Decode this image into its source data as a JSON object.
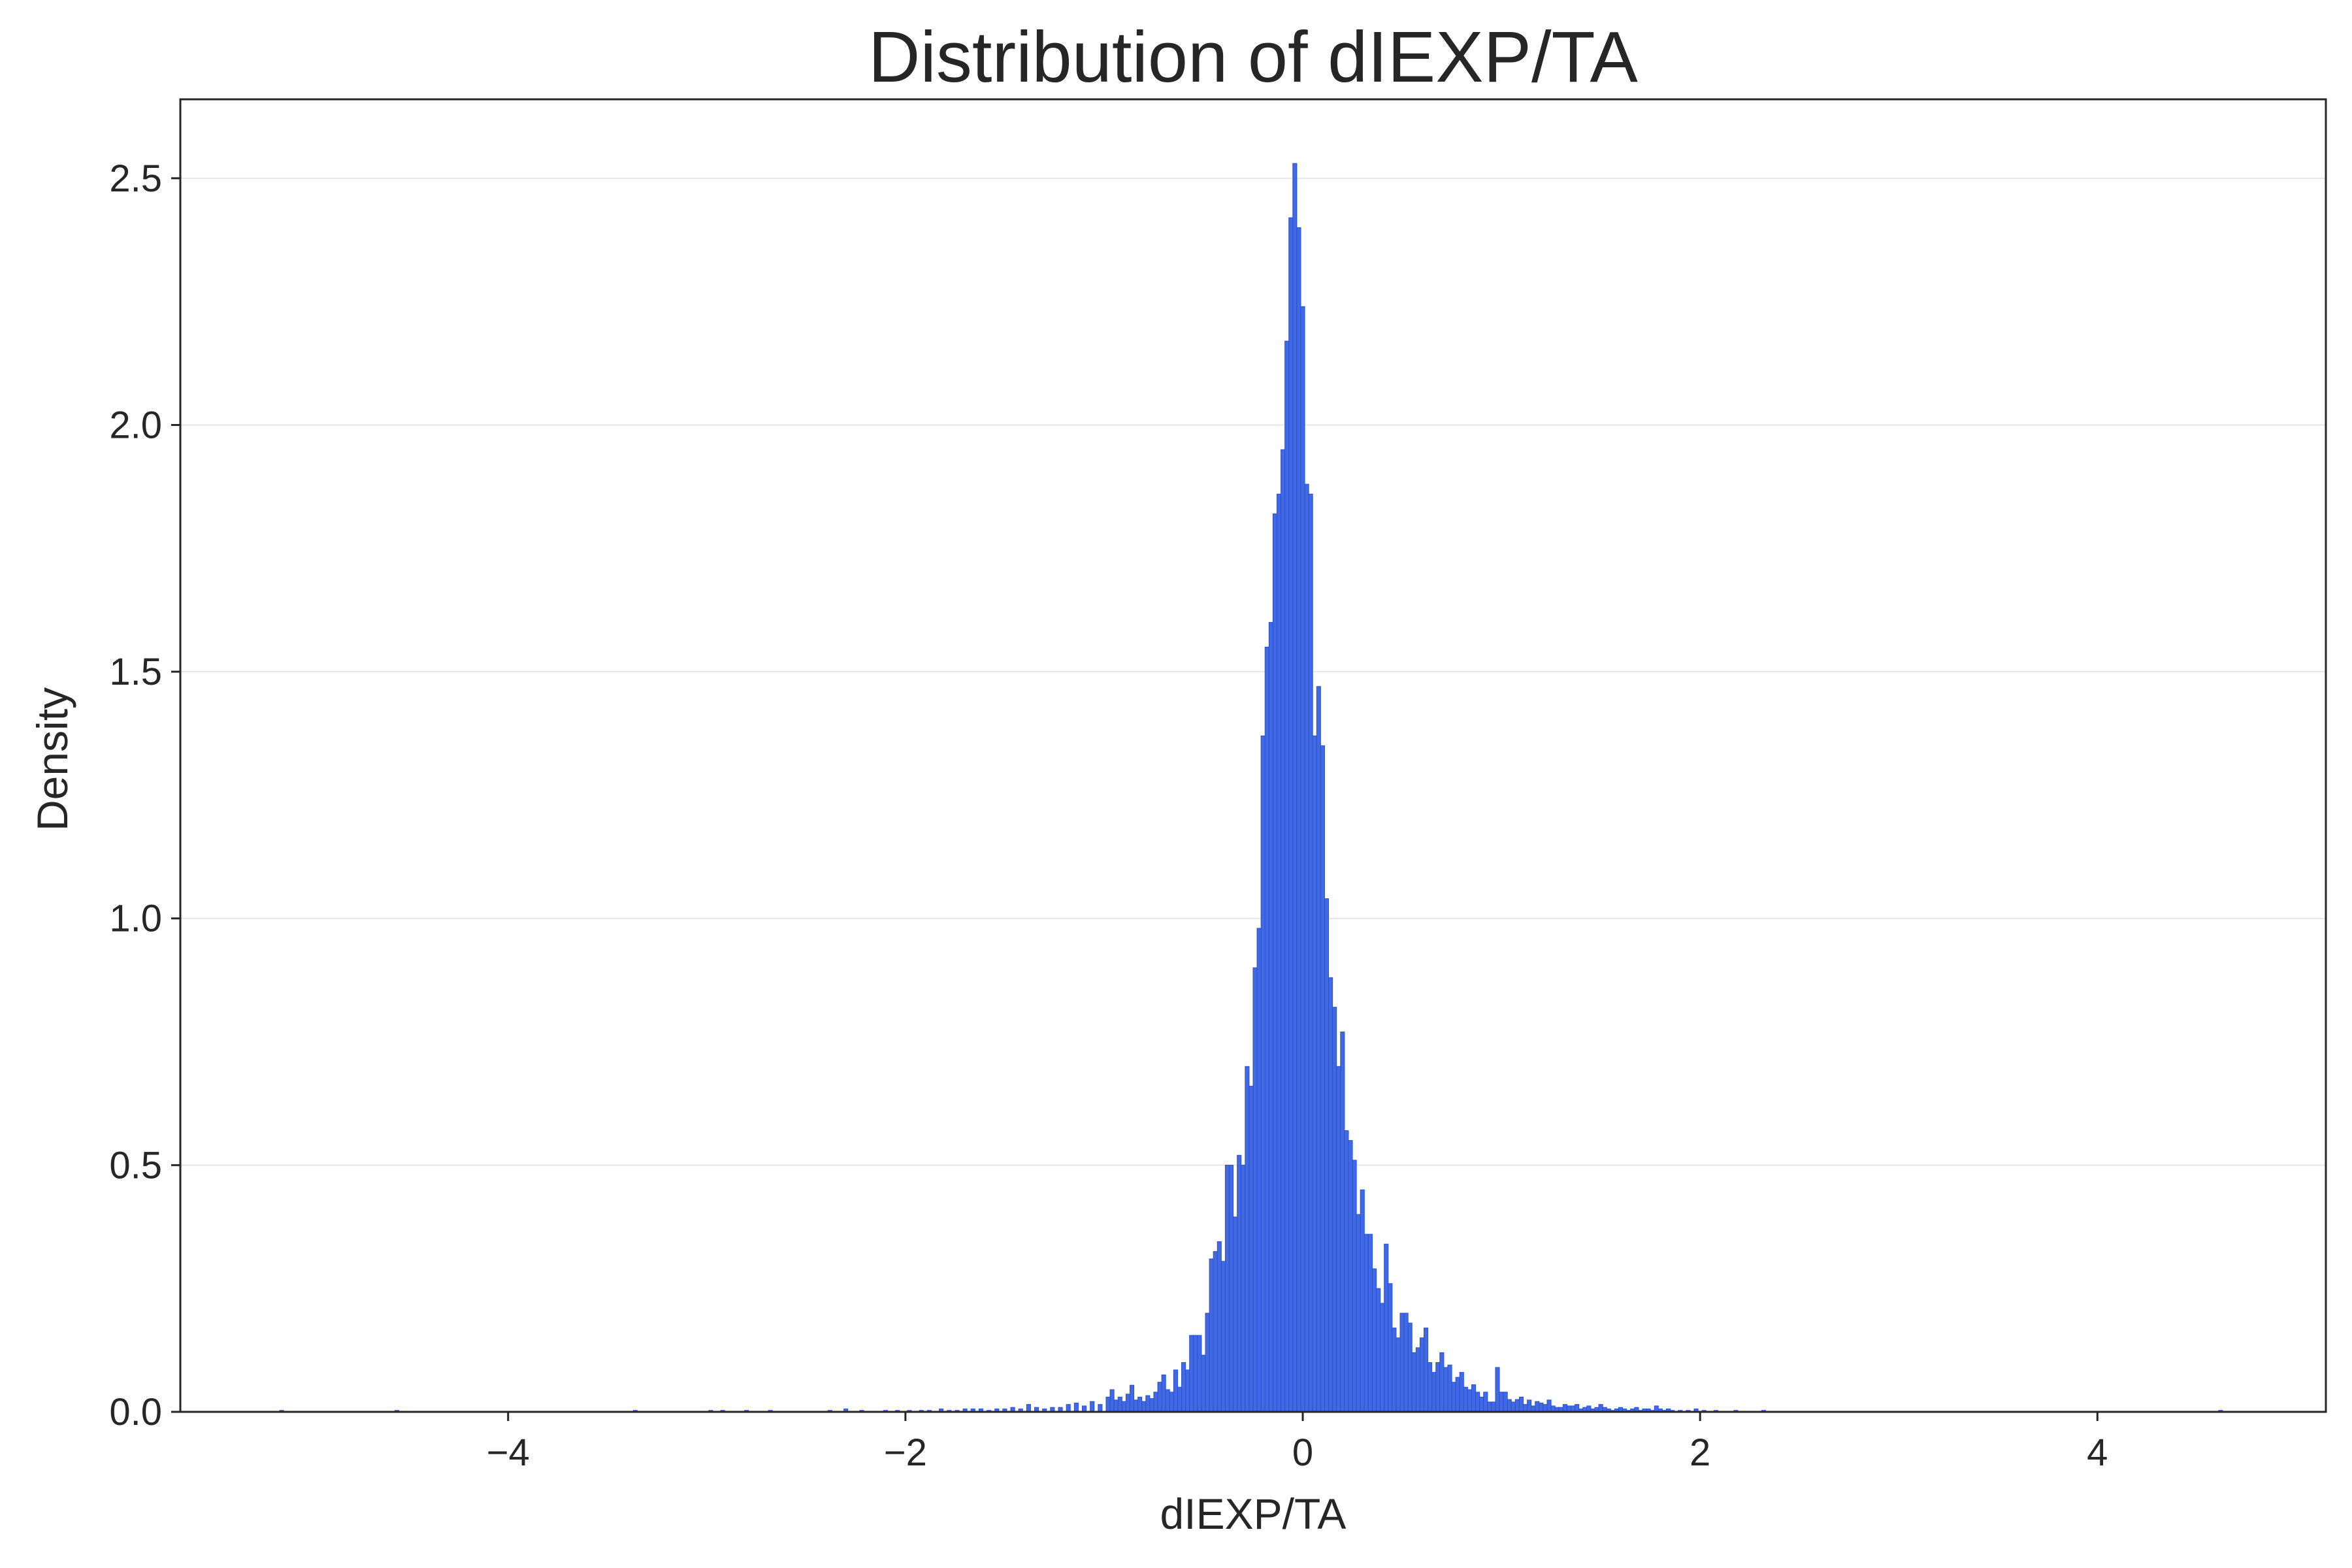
{
  "chart_data": {
    "type": "bar",
    "subtype": "histogram",
    "title": "Distribution of dIEXP/TA",
    "xlabel": "dIEXP/TA",
    "ylabel": "Density",
    "xlim": [
      -5.65,
      5.15
    ],
    "ylim": [
      0,
      2.66
    ],
    "xticks": [
      -4,
      -2,
      0,
      2,
      4
    ],
    "xtick_labels": [
      "−4",
      "−2",
      "0",
      "2",
      "4"
    ],
    "yticks": [
      0.0,
      0.5,
      1.0,
      1.5,
      2.0,
      2.5
    ],
    "ytick_labels": [
      "0.0",
      "0.5",
      "1.0",
      "1.5",
      "2.0",
      "2.5"
    ],
    "grid": "y",
    "bin_width": 0.02,
    "bar_color": "#4169e1",
    "bar_edge_color": "#2a4fd6",
    "bins": [
      {
        "x": -5.14,
        "y": 0.003
      },
      {
        "x": -4.56,
        "y": 0.003
      },
      {
        "x": -3.36,
        "y": 0.003
      },
      {
        "x": -2.98,
        "y": 0.003
      },
      {
        "x": -2.92,
        "y": 0.003
      },
      {
        "x": -2.8,
        "y": 0.003
      },
      {
        "x": -2.68,
        "y": 0.003
      },
      {
        "x": -2.38,
        "y": 0.003
      },
      {
        "x": -2.3,
        "y": 0.006
      },
      {
        "x": -2.22,
        "y": 0.003
      },
      {
        "x": -2.1,
        "y": 0.003
      },
      {
        "x": -2.04,
        "y": 0.003
      },
      {
        "x": -1.98,
        "y": 0.003
      },
      {
        "x": -1.92,
        "y": 0.003
      },
      {
        "x": -1.88,
        "y": 0.003
      },
      {
        "x": -1.82,
        "y": 0.006
      },
      {
        "x": -1.78,
        "y": 0.003
      },
      {
        "x": -1.74,
        "y": 0.003
      },
      {
        "x": -1.7,
        "y": 0.006
      },
      {
        "x": -1.66,
        "y": 0.006
      },
      {
        "x": -1.62,
        "y": 0.006
      },
      {
        "x": -1.58,
        "y": 0.003
      },
      {
        "x": -1.54,
        "y": 0.006
      },
      {
        "x": -1.5,
        "y": 0.006
      },
      {
        "x": -1.46,
        "y": 0.009
      },
      {
        "x": -1.42,
        "y": 0.006
      },
      {
        "x": -1.38,
        "y": 0.015
      },
      {
        "x": -1.34,
        "y": 0.009
      },
      {
        "x": -1.3,
        "y": 0.006
      },
      {
        "x": -1.26,
        "y": 0.009
      },
      {
        "x": -1.22,
        "y": 0.009
      },
      {
        "x": -1.18,
        "y": 0.015
      },
      {
        "x": -1.14,
        "y": 0.018
      },
      {
        "x": -1.1,
        "y": 0.012
      },
      {
        "x": -1.06,
        "y": 0.021
      },
      {
        "x": -1.02,
        "y": 0.015
      },
      {
        "x": -0.98,
        "y": 0.03
      },
      {
        "x": -0.96,
        "y": 0.045
      },
      {
        "x": -0.94,
        "y": 0.024
      },
      {
        "x": -0.92,
        "y": 0.03
      },
      {
        "x": -0.9,
        "y": 0.021
      },
      {
        "x": -0.88,
        "y": 0.036
      },
      {
        "x": -0.86,
        "y": 0.054
      },
      {
        "x": -0.84,
        "y": 0.024
      },
      {
        "x": -0.82,
        "y": 0.03
      },
      {
        "x": -0.8,
        "y": 0.021
      },
      {
        "x": -0.78,
        "y": 0.033
      },
      {
        "x": -0.76,
        "y": 0.027
      },
      {
        "x": -0.74,
        "y": 0.04
      },
      {
        "x": -0.72,
        "y": 0.06
      },
      {
        "x": -0.7,
        "y": 0.075
      },
      {
        "x": -0.68,
        "y": 0.045
      },
      {
        "x": -0.66,
        "y": 0.04
      },
      {
        "x": -0.64,
        "y": 0.085
      },
      {
        "x": -0.62,
        "y": 0.05
      },
      {
        "x": -0.6,
        "y": 0.1
      },
      {
        "x": -0.58,
        "y": 0.085
      },
      {
        "x": -0.56,
        "y": 0.155
      },
      {
        "x": -0.54,
        "y": 0.155
      },
      {
        "x": -0.52,
        "y": 0.155
      },
      {
        "x": -0.5,
        "y": 0.115
      },
      {
        "x": -0.48,
        "y": 0.2
      },
      {
        "x": -0.46,
        "y": 0.31
      },
      {
        "x": -0.44,
        "y": 0.325
      },
      {
        "x": -0.42,
        "y": 0.345
      },
      {
        "x": -0.4,
        "y": 0.305
      },
      {
        "x": -0.38,
        "y": 0.5
      },
      {
        "x": -0.36,
        "y": 0.5
      },
      {
        "x": -0.34,
        "y": 0.395
      },
      {
        "x": -0.32,
        "y": 0.52
      },
      {
        "x": -0.3,
        "y": 0.5
      },
      {
        "x": -0.28,
        "y": 0.7
      },
      {
        "x": -0.26,
        "y": 0.66
      },
      {
        "x": -0.24,
        "y": 0.9
      },
      {
        "x": -0.22,
        "y": 0.98
      },
      {
        "x": -0.2,
        "y": 1.37
      },
      {
        "x": -0.18,
        "y": 1.55
      },
      {
        "x": -0.16,
        "y": 1.6
      },
      {
        "x": -0.14,
        "y": 1.82
      },
      {
        "x": -0.12,
        "y": 1.86
      },
      {
        "x": -0.1,
        "y": 1.95
      },
      {
        "x": -0.08,
        "y": 2.17
      },
      {
        "x": -0.06,
        "y": 2.42
      },
      {
        "x": -0.04,
        "y": 2.53
      },
      {
        "x": -0.02,
        "y": 2.4
      },
      {
        "x": 0.0,
        "y": 2.24
      },
      {
        "x": 0.02,
        "y": 1.88
      },
      {
        "x": 0.04,
        "y": 1.86
      },
      {
        "x": 0.06,
        "y": 1.37
      },
      {
        "x": 0.08,
        "y": 1.47
      },
      {
        "x": 0.1,
        "y": 1.35
      },
      {
        "x": 0.12,
        "y": 1.04
      },
      {
        "x": 0.14,
        "y": 0.88
      },
      {
        "x": 0.16,
        "y": 0.82
      },
      {
        "x": 0.18,
        "y": 0.7
      },
      {
        "x": 0.2,
        "y": 0.77
      },
      {
        "x": 0.22,
        "y": 0.57
      },
      {
        "x": 0.24,
        "y": 0.55
      },
      {
        "x": 0.26,
        "y": 0.51
      },
      {
        "x": 0.28,
        "y": 0.4
      },
      {
        "x": 0.3,
        "y": 0.45
      },
      {
        "x": 0.32,
        "y": 0.36
      },
      {
        "x": 0.34,
        "y": 0.36
      },
      {
        "x": 0.36,
        "y": 0.29
      },
      {
        "x": 0.38,
        "y": 0.25
      },
      {
        "x": 0.4,
        "y": 0.22
      },
      {
        "x": 0.42,
        "y": 0.34
      },
      {
        "x": 0.44,
        "y": 0.26
      },
      {
        "x": 0.46,
        "y": 0.17
      },
      {
        "x": 0.48,
        "y": 0.15
      },
      {
        "x": 0.5,
        "y": 0.2
      },
      {
        "x": 0.52,
        "y": 0.2
      },
      {
        "x": 0.54,
        "y": 0.18
      },
      {
        "x": 0.56,
        "y": 0.12
      },
      {
        "x": 0.58,
        "y": 0.13
      },
      {
        "x": 0.6,
        "y": 0.15
      },
      {
        "x": 0.62,
        "y": 0.17
      },
      {
        "x": 0.64,
        "y": 0.1
      },
      {
        "x": 0.66,
        "y": 0.08
      },
      {
        "x": 0.68,
        "y": 0.1
      },
      {
        "x": 0.7,
        "y": 0.12
      },
      {
        "x": 0.72,
        "y": 0.09
      },
      {
        "x": 0.74,
        "y": 0.095
      },
      {
        "x": 0.76,
        "y": 0.06
      },
      {
        "x": 0.78,
        "y": 0.07
      },
      {
        "x": 0.8,
        "y": 0.08
      },
      {
        "x": 0.82,
        "y": 0.05
      },
      {
        "x": 0.84,
        "y": 0.045
      },
      {
        "x": 0.86,
        "y": 0.055
      },
      {
        "x": 0.88,
        "y": 0.04
      },
      {
        "x": 0.9,
        "y": 0.03
      },
      {
        "x": 0.92,
        "y": 0.04
      },
      {
        "x": 0.94,
        "y": 0.02
      },
      {
        "x": 0.96,
        "y": 0.02
      },
      {
        "x": 0.98,
        "y": 0.09
      },
      {
        "x": 1.0,
        "y": 0.04
      },
      {
        "x": 1.02,
        "y": 0.04
      },
      {
        "x": 1.04,
        "y": 0.025
      },
      {
        "x": 1.06,
        "y": 0.02
      },
      {
        "x": 1.08,
        "y": 0.025
      },
      {
        "x": 1.1,
        "y": 0.03
      },
      {
        "x": 1.12,
        "y": 0.015
      },
      {
        "x": 1.14,
        "y": 0.024
      },
      {
        "x": 1.16,
        "y": 0.012
      },
      {
        "x": 1.18,
        "y": 0.021
      },
      {
        "x": 1.2,
        "y": 0.018
      },
      {
        "x": 1.22,
        "y": 0.015
      },
      {
        "x": 1.24,
        "y": 0.024
      },
      {
        "x": 1.26,
        "y": 0.012
      },
      {
        "x": 1.28,
        "y": 0.009
      },
      {
        "x": 1.3,
        "y": 0.009
      },
      {
        "x": 1.32,
        "y": 0.015
      },
      {
        "x": 1.34,
        "y": 0.012
      },
      {
        "x": 1.36,
        "y": 0.012
      },
      {
        "x": 1.38,
        "y": 0.015
      },
      {
        "x": 1.4,
        "y": 0.006
      },
      {
        "x": 1.42,
        "y": 0.009
      },
      {
        "x": 1.44,
        "y": 0.012
      },
      {
        "x": 1.46,
        "y": 0.006
      },
      {
        "x": 1.48,
        "y": 0.009
      },
      {
        "x": 1.5,
        "y": 0.015
      },
      {
        "x": 1.52,
        "y": 0.009
      },
      {
        "x": 1.54,
        "y": 0.006
      },
      {
        "x": 1.56,
        "y": 0.003
      },
      {
        "x": 1.58,
        "y": 0.006
      },
      {
        "x": 1.6,
        "y": 0.009
      },
      {
        "x": 1.62,
        "y": 0.006
      },
      {
        "x": 1.64,
        "y": 0.003
      },
      {
        "x": 1.66,
        "y": 0.006
      },
      {
        "x": 1.68,
        "y": 0.009
      },
      {
        "x": 1.7,
        "y": 0.003
      },
      {
        "x": 1.72,
        "y": 0.006
      },
      {
        "x": 1.74,
        "y": 0.006
      },
      {
        "x": 1.76,
        "y": 0.003
      },
      {
        "x": 1.78,
        "y": 0.012
      },
      {
        "x": 1.8,
        "y": 0.006
      },
      {
        "x": 1.82,
        "y": 0.003
      },
      {
        "x": 1.84,
        "y": 0.006
      },
      {
        "x": 1.86,
        "y": 0.003
      },
      {
        "x": 1.9,
        "y": 0.003
      },
      {
        "x": 1.94,
        "y": 0.003
      },
      {
        "x": 1.98,
        "y": 0.006
      },
      {
        "x": 2.02,
        "y": 0.003
      },
      {
        "x": 2.08,
        "y": 0.003
      },
      {
        "x": 2.18,
        "y": 0.003
      },
      {
        "x": 2.32,
        "y": 0.003
      },
      {
        "x": 4.62,
        "y": 0.003
      }
    ]
  }
}
